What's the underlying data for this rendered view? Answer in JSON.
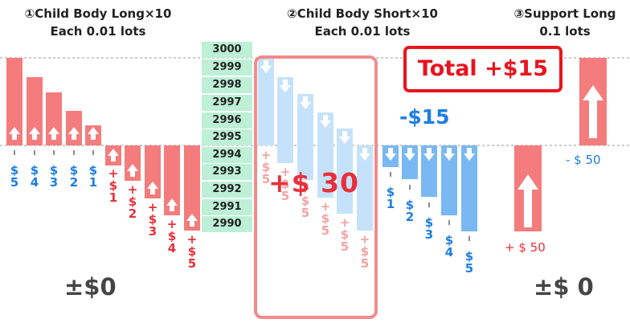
{
  "headers": {
    "child_long_title": "①Child Body Long×10",
    "child_long_sub": "Each 0.01 lots",
    "child_short_title": "②Child Body Short×10",
    "child_short_sub": "Each 0.01 lots",
    "support_long_title": "③Support Long",
    "support_long_sub": "0.1 lots"
  },
  "price_levels": [
    "3000",
    "2999",
    "2998",
    "2997",
    "2996",
    "2995",
    "2994",
    "2993",
    "2992",
    "2991",
    "2990"
  ],
  "long_profit_labels": [
    "$ 5",
    "$ 4",
    "$ 3",
    "$ 2",
    "$ 1"
  ],
  "long_loss_labels": [
    "+ $ 1",
    "+ $ 2",
    "+ $ 3",
    "+ $ 4",
    "+ $ 5"
  ],
  "short_profit_labels": [
    "+ $ 5",
    "+ $ 5",
    "+ $ 5",
    "+ $ 5",
    "+ $ 5"
  ],
  "short_loss_labels": [
    "$ 1",
    "$ 2",
    "$ 3",
    "$ 4",
    "$ 5"
  ],
  "short_profit_total": "+$ 30",
  "short_net": "-$15",
  "support_loss": "- $ 50",
  "support_gain": "+ $ 50",
  "total": "Total +$15",
  "net_left": "±$0",
  "net_right": "±$ 0",
  "colors": {
    "long_red": "#f47c7c",
    "short_light_blue": "#c6e2fb",
    "short_blue": "#79b8f2",
    "label_blue": "#1e7ee0",
    "label_red": "#e8303a",
    "faded_red": "#f3a3a3",
    "total_red": "#e8141e",
    "price_green": "#bdf0d6"
  }
}
